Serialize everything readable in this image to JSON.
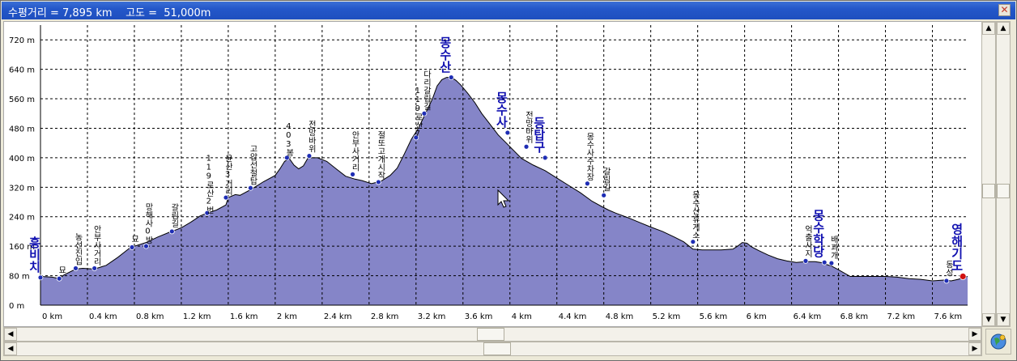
{
  "window": {
    "title": "수평거리 = 7,895 km    고도 =  51,000m",
    "close_glyph": "✕"
  },
  "scroll": {
    "up": "▲",
    "down": "▼",
    "left": "◀",
    "right": "▶"
  },
  "colors": {
    "fill": "#8585c8",
    "stroke": "#000000",
    "grid": "#000000",
    "point": "#1e2db4",
    "end_point": "#d01010",
    "major_label": "#1010b0"
  },
  "icons": {
    "map_button": "globe-icon",
    "cursor": "mouse-pointer-icon"
  },
  "chart_data": {
    "type": "area",
    "title": "",
    "xlabel": "",
    "ylabel": "",
    "xlim": [
      0,
      7.9
    ],
    "ylim": [
      0,
      760
    ],
    "grid": true,
    "x_ticks": [
      "0 km",
      "0.4 km",
      "0.8 km",
      "1.2 km",
      "1.6 km",
      "2 km",
      "2.4 km",
      "2.8 km",
      "3.2 km",
      "3.6 km",
      "4 km",
      "4.4 km",
      "4.8 km",
      "5.2 km",
      "5.6 km",
      "6 km",
      "6.4 km",
      "6.8 km",
      "7.2 km",
      "7.6 km"
    ],
    "x_tick_values": [
      0,
      0.4,
      0.8,
      1.2,
      1.6,
      2.0,
      2.4,
      2.8,
      3.2,
      3.6,
      4.0,
      4.4,
      4.8,
      5.2,
      5.6,
      6.0,
      6.4,
      6.8,
      7.2,
      7.6
    ],
    "y_ticks": [
      "0 m",
      "80 m",
      "160 m",
      "240 m",
      "320 m",
      "400 m",
      "480 m",
      "560 m",
      "640 m",
      "720 m"
    ],
    "y_tick_values": [
      0,
      80,
      160,
      240,
      320,
      400,
      480,
      560,
      640,
      720
    ],
    "profile": {
      "x": [
        0,
        0.1,
        0.16,
        0.2,
        0.3,
        0.36,
        0.46,
        0.56,
        0.66,
        0.76,
        0.8,
        0.9,
        1.0,
        1.1,
        1.16,
        1.2,
        1.28,
        1.36,
        1.42,
        1.5,
        1.58,
        1.6,
        1.66,
        1.7,
        1.8,
        1.9,
        2.0,
        2.04,
        2.08,
        2.12,
        2.16,
        2.2,
        2.24,
        2.28,
        2.36,
        2.44,
        2.52,
        2.6,
        2.68,
        2.74,
        2.82,
        2.9,
        2.98,
        3.04,
        3.1,
        3.16,
        3.22,
        3.28,
        3.34,
        3.38,
        3.42,
        3.46,
        3.5,
        3.54,
        3.58,
        3.64,
        3.7,
        3.76,
        3.82,
        3.9,
        4.0,
        4.1,
        4.2,
        4.3,
        4.4,
        4.5,
        4.6,
        4.7,
        4.78,
        4.84,
        4.9,
        5.0,
        5.1,
        5.2,
        5.3,
        5.4,
        5.48,
        5.56,
        5.64,
        5.72,
        5.8,
        5.9,
        5.94,
        5.98,
        6.02,
        6.06,
        6.12,
        6.2,
        6.28,
        6.36,
        6.44,
        6.52,
        6.6,
        6.66,
        6.7,
        6.74,
        6.8,
        6.9,
        7.0,
        7.1,
        7.2,
        7.3,
        7.4,
        7.5,
        7.6,
        7.7,
        7.76,
        7.82,
        7.88,
        7.9
      ],
      "y": [
        78,
        76,
        72,
        82,
        98,
        100,
        98,
        108,
        130,
        155,
        160,
        170,
        185,
        198,
        205,
        210,
        225,
        242,
        250,
        258,
        272,
        292,
        300,
        298,
        315,
        335,
        352,
        370,
        390,
        398,
        380,
        370,
        378,
        400,
        400,
        390,
        370,
        350,
        342,
        338,
        330,
        336,
        352,
        372,
        410,
        450,
        480,
        520,
        560,
        595,
        612,
        618,
        618,
        610,
        598,
        575,
        550,
        520,
        495,
        462,
        430,
        398,
        380,
        365,
        345,
        325,
        305,
        282,
        268,
        258,
        250,
        238,
        225,
        212,
        200,
        185,
        172,
        152,
        150,
        150,
        150,
        152,
        160,
        170,
        168,
        158,
        148,
        136,
        126,
        120,
        116,
        118,
        118,
        115,
        110,
        106,
        96,
        78,
        78,
        78,
        78,
        76,
        72,
        70,
        66,
        68,
        66,
        70,
        76,
        78
      ]
    },
    "points": [
      {
        "name": "흥비치",
        "x": 0.0,
        "y": 75,
        "major": true
      },
      {
        "name": "묘",
        "x": 0.16,
        "y": 72,
        "major": false
      },
      {
        "name": "농선진입",
        "x": 0.3,
        "y": 100,
        "major": false
      },
      {
        "name": "안부사거리",
        "x": 0.46,
        "y": 100,
        "major": false
      },
      {
        "name": "묘",
        "x": 0.78,
        "y": 157,
        "major": false
      },
      {
        "name": "망해사0방",
        "x": 0.9,
        "y": 160,
        "major": false
      },
      {
        "name": "갈림길",
        "x": 1.12,
        "y": 200,
        "major": false
      },
      {
        "name": "119로산2번",
        "x": 1.42,
        "y": 250,
        "major": false
      },
      {
        "name": "윤산3거리",
        "x": 1.58,
        "y": 292,
        "major": false
      },
      {
        "name": "고압선철탑",
        "x": 1.79,
        "y": 318,
        "major": false
      },
      {
        "name": "403봉",
        "x": 2.1,
        "y": 400,
        "major": false
      },
      {
        "name": "전망바위",
        "x": 2.29,
        "y": 405,
        "major": false
      },
      {
        "name": "안부사거리",
        "x": 2.66,
        "y": 355,
        "major": false
      },
      {
        "name": "절또고개시작",
        "x": 2.88,
        "y": 334,
        "major": false
      },
      {
        "name": "119로산7",
        "x": 3.2,
        "y": 455,
        "major": false
      },
      {
        "name": "다리갈림길",
        "x": 3.27,
        "y": 520,
        "major": false
      },
      {
        "name": "몽수산",
        "x": 3.5,
        "y": 618,
        "major": true
      },
      {
        "name": "몽수사",
        "x": 3.98,
        "y": 468,
        "major": true
      },
      {
        "name": "전망바위",
        "x": 4.14,
        "y": 430,
        "major": false
      },
      {
        "name": "등탑구",
        "x": 4.3,
        "y": 400,
        "major": true
      },
      {
        "name": "몽수사주차장",
        "x": 4.66,
        "y": 330,
        "major": false
      },
      {
        "name": "갈림길",
        "x": 4.8,
        "y": 298,
        "major": false
      },
      {
        "name": "몽수산휴게소",
        "x": 5.56,
        "y": 172,
        "major": false
      },
      {
        "name": "억출사지",
        "x": 6.52,
        "y": 120,
        "major": false
      },
      {
        "name": "몽수학당",
        "x": 6.68,
        "y": 116,
        "major": true
      },
      {
        "name": "배과개",
        "x": 6.74,
        "y": 114,
        "major": false
      },
      {
        "name": "동성",
        "x": 7.72,
        "y": 66,
        "major": false
      },
      {
        "name": "영해기도",
        "x": 7.86,
        "y": 78,
        "major": true
      }
    ]
  }
}
